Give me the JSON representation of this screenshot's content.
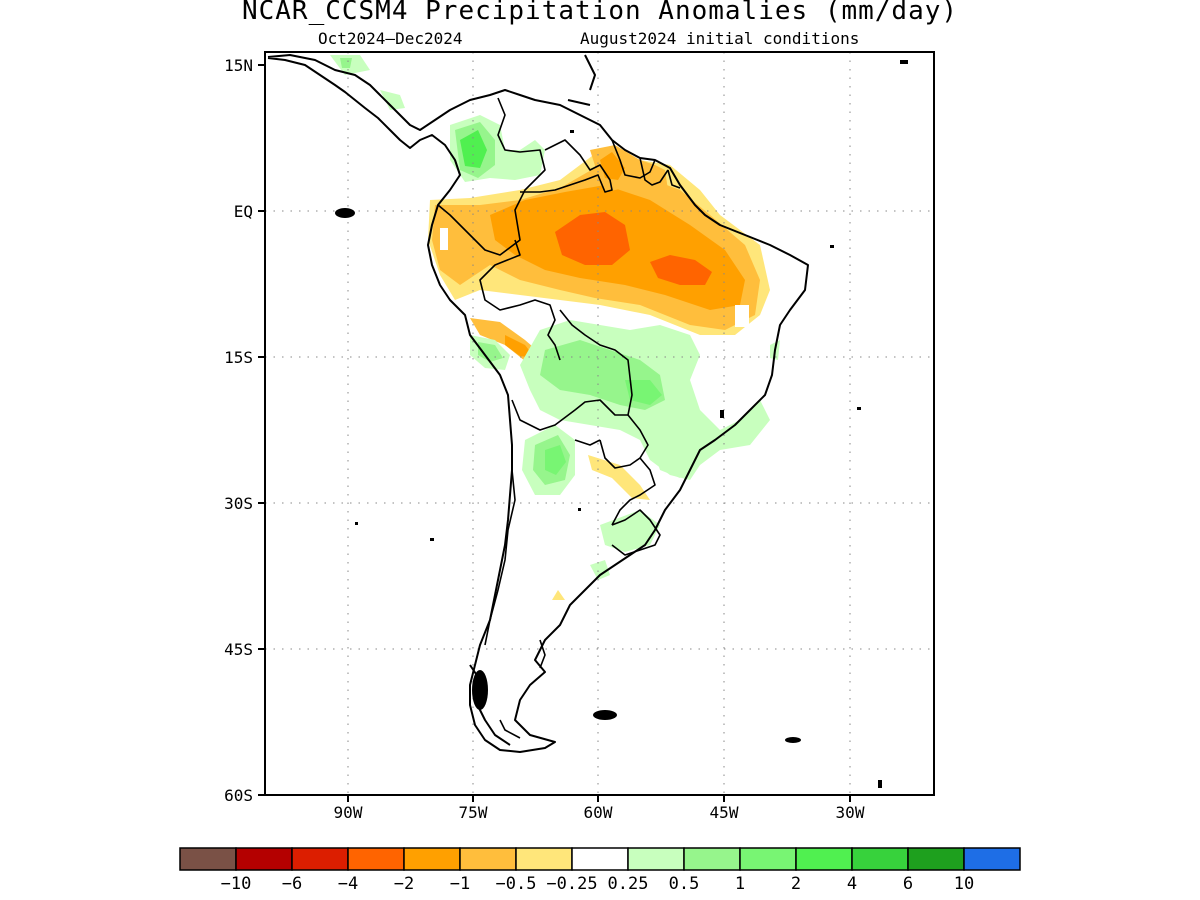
{
  "title": "NCAR_CCSM4 Precipitation Anomalies (mm/day)",
  "subtitle_period": "Oct2024–Dec2024",
  "subtitle_init": "August2024 initial conditions",
  "map": {
    "projection": "lon-lat",
    "lon_range": [
      -100,
      -20
    ],
    "lat_range": [
      -60,
      15
    ],
    "grid": "dotted",
    "lat_ticks": [
      {
        "value": 15,
        "label": "15N"
      },
      {
        "value": 0,
        "label": "EQ"
      },
      {
        "value": -15,
        "label": "15S"
      },
      {
        "value": -30,
        "label": "30S"
      },
      {
        "value": -45,
        "label": "45S"
      },
      {
        "value": -60,
        "label": "60S"
      }
    ],
    "lon_ticks": [
      {
        "value": -90,
        "label": "90W"
      },
      {
        "value": -75,
        "label": "75W"
      },
      {
        "value": -60,
        "label": "60W"
      },
      {
        "value": -45,
        "label": "45W"
      },
      {
        "value": -30,
        "label": "30W"
      }
    ]
  },
  "colorbar": {
    "colors": [
      "#7a5146",
      "#b40000",
      "#dc1e00",
      "#ff6400",
      "#ffa000",
      "#ffbe3c",
      "#ffe67a",
      "#ffffff",
      "#c8ffbe",
      "#96f58c",
      "#78f573",
      "#50f050",
      "#37d23c",
      "#1ea01e",
      "#1e6ee6"
    ],
    "labels": [
      "−10",
      "−6",
      "−4",
      "−2",
      "−1",
      "−0.5",
      "−0.25",
      "0.25",
      "0.5",
      "1",
      "2",
      "4",
      "6",
      "10"
    ]
  },
  "anomaly_regions": [
    {
      "region": "Amazon basin (northern Brazil, Peru, Colombia)",
      "level": "-2 to -4",
      "color": "#ff6400"
    },
    {
      "region": "Northern South America / Guianas",
      "level": "-0.5 to -1",
      "color": "#ffbe3c"
    },
    {
      "region": "Western Colombia",
      "level": "2 to 4",
      "color": "#50f050"
    },
    {
      "region": "Central Brazil / Bolivia",
      "level": "0.5 to 2",
      "color": "#96f58c"
    },
    {
      "region": "Northern Argentina",
      "level": "1 to 2",
      "color": "#78f573"
    }
  ]
}
